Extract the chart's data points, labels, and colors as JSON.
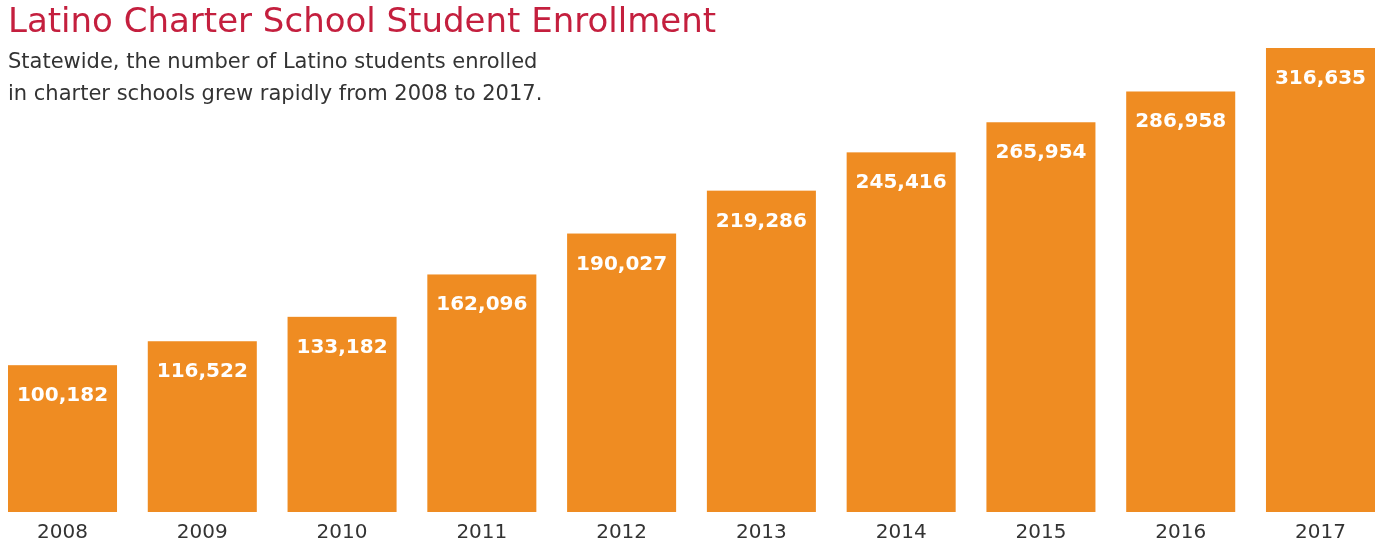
{
  "chart_data": {
    "type": "bar",
    "title": "Latino Charter School Student Enrollment",
    "subtitle": "Statewide, the number of Latino students enrolled in charter schools grew rapidly from 2008 to 2017.",
    "categories": [
      "2008",
      "2009",
      "2010",
      "2011",
      "2012",
      "2013",
      "2014",
      "2015",
      "2016",
      "2017"
    ],
    "values": [
      100182,
      116522,
      133182,
      162096,
      190027,
      219286,
      245416,
      265954,
      286958,
      316635
    ],
    "value_labels": [
      "100,182",
      "116,522",
      "133,182",
      "162,096",
      "190,027",
      "219,286",
      "245,416",
      "265,954",
      "286,958",
      "316,635"
    ],
    "color": "#ef8c22"
  }
}
